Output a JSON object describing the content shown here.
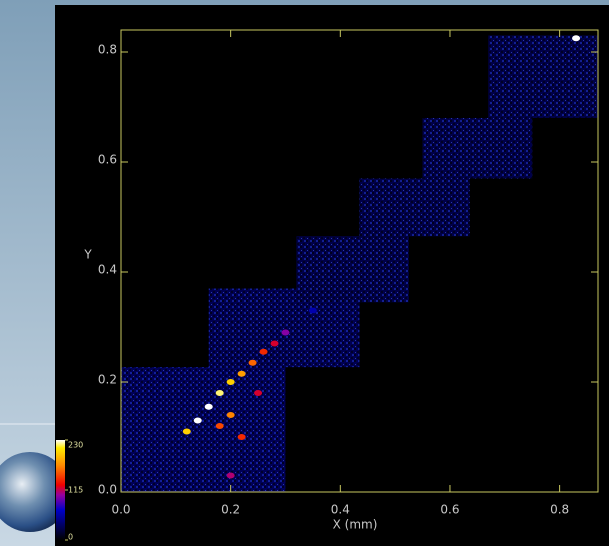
{
  "chart_data": {
    "type": "heatmap",
    "x_label": "X (mm)",
    "y_label": "Y",
    "xlim": [
      0,
      0.87
    ],
    "ylim": [
      0,
      0.84
    ],
    "xticks": [
      {
        "value": 0,
        "label": "0.0"
      },
      0.2,
      0.4,
      0.6,
      0.8
    ],
    "yticks": [
      {
        "value": 0,
        "label": "0.0"
      },
      0.2,
      0.4,
      0.6,
      0.8
    ],
    "clim": [
      0,
      230
    ],
    "cticks": [
      0,
      115,
      230
    ],
    "tiles": [
      {
        "x": [
          0,
          0.3
        ],
        "y": [
          0,
          0.227
        ],
        "value": 30
      },
      {
        "x": [
          0.16,
          0.435
        ],
        "y": [
          0.227,
          0.37
        ],
        "value": 28
      },
      {
        "x": [
          0.32,
          0.525
        ],
        "y": [
          0.345,
          0.465
        ],
        "value": 25
      },
      {
        "x": [
          0.435,
          0.636
        ],
        "y": [
          0.465,
          0.57
        ],
        "value": 25
      },
      {
        "x": [
          0.55,
          0.75
        ],
        "y": [
          0.57,
          0.68
        ],
        "value": 25
      },
      {
        "x": [
          0.67,
          0.87
        ],
        "y": [
          0.68,
          0.83
        ],
        "value": 25
      }
    ],
    "points": [
      {
        "x": 0.12,
        "y": 0.11,
        "value": 200
      },
      {
        "x": 0.14,
        "y": 0.13,
        "value": 230
      },
      {
        "x": 0.16,
        "y": 0.155,
        "value": 230
      },
      {
        "x": 0.18,
        "y": 0.18,
        "value": 220
      },
      {
        "x": 0.2,
        "y": 0.2,
        "value": 200
      },
      {
        "x": 0.22,
        "y": 0.215,
        "value": 180
      },
      {
        "x": 0.24,
        "y": 0.235,
        "value": 160
      },
      {
        "x": 0.26,
        "y": 0.255,
        "value": 140
      },
      {
        "x": 0.28,
        "y": 0.27,
        "value": 120
      },
      {
        "x": 0.3,
        "y": 0.29,
        "value": 100
      },
      {
        "x": 0.2,
        "y": 0.14,
        "value": 170
      },
      {
        "x": 0.22,
        "y": 0.1,
        "value": 140
      },
      {
        "x": 0.18,
        "y": 0.12,
        "value": 150
      },
      {
        "x": 0.25,
        "y": 0.18,
        "value": 120
      },
      {
        "x": 0.2,
        "y": 0.03,
        "value": 110
      },
      {
        "x": 0.35,
        "y": 0.33,
        "value": 60
      },
      {
        "x": 0.83,
        "y": 0.825,
        "value": 230
      }
    ]
  }
}
